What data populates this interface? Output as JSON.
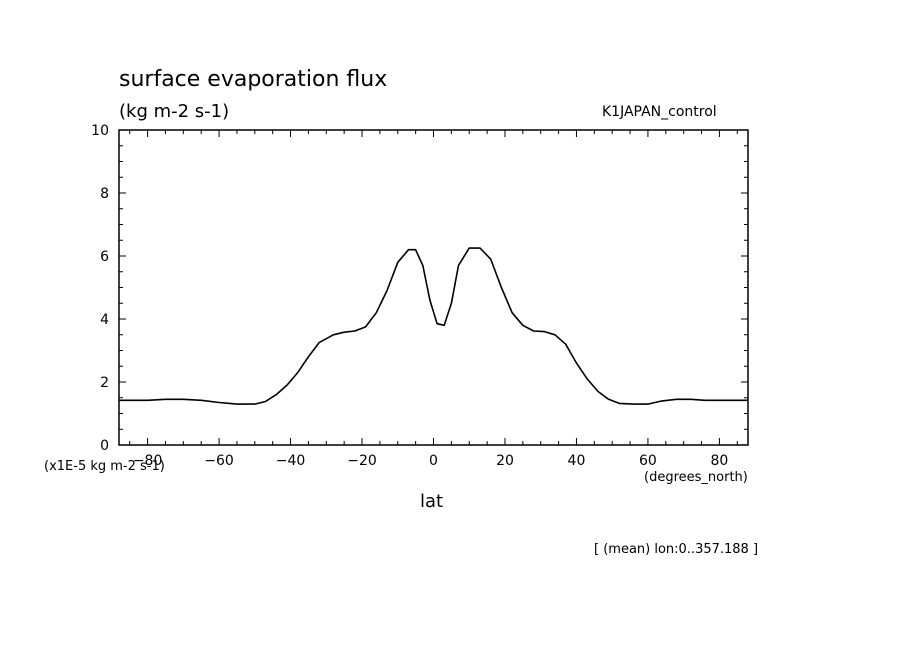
{
  "chart_data": {
    "type": "line",
    "title": "surface evaporation flux",
    "units": "(kg m-2 s-1)",
    "run_label": "K1JAPAN_control",
    "scale_note": "(x1E-5 kg m-2 s-1)",
    "xlabel": "lat",
    "xunits": "(degrees_north)",
    "footnote": "[ (mean) lon:0..357.188 ]",
    "xlim": [
      -88,
      88
    ],
    "ylim": [
      0,
      10
    ],
    "xticks": [
      -80,
      -60,
      -40,
      -20,
      0,
      20,
      40,
      60,
      80
    ],
    "yticks": [
      0,
      2,
      4,
      6,
      8,
      10
    ],
    "grid": false,
    "series": [
      {
        "x": [
          -88,
          -80,
          -75,
          -70,
          -65,
          -60,
          -55,
          -50,
          -47,
          -44,
          -41,
          -38,
          -35,
          -32,
          -28,
          -25,
          -22,
          -19,
          -16,
          -13,
          -10,
          -7,
          -5,
          -3,
          -1,
          1,
          3,
          5,
          7,
          10,
          13,
          16,
          19,
          22,
          25,
          28,
          31,
          34,
          37,
          40,
          43,
          46,
          49,
          52,
          56,
          60,
          64,
          68,
          72,
          76,
          80,
          88
        ],
        "y": [
          1.42,
          1.42,
          1.45,
          1.45,
          1.42,
          1.35,
          1.3,
          1.3,
          1.38,
          1.6,
          1.9,
          2.3,
          2.8,
          3.25,
          3.5,
          3.58,
          3.62,
          3.75,
          4.2,
          4.9,
          5.8,
          6.2,
          6.2,
          5.7,
          4.6,
          3.85,
          3.8,
          4.5,
          5.7,
          6.25,
          6.25,
          5.9,
          5.0,
          4.2,
          3.8,
          3.62,
          3.6,
          3.5,
          3.2,
          2.6,
          2.1,
          1.7,
          1.45,
          1.32,
          1.3,
          1.3,
          1.4,
          1.45,
          1.45,
          1.42,
          1.42,
          1.42
        ]
      }
    ]
  }
}
